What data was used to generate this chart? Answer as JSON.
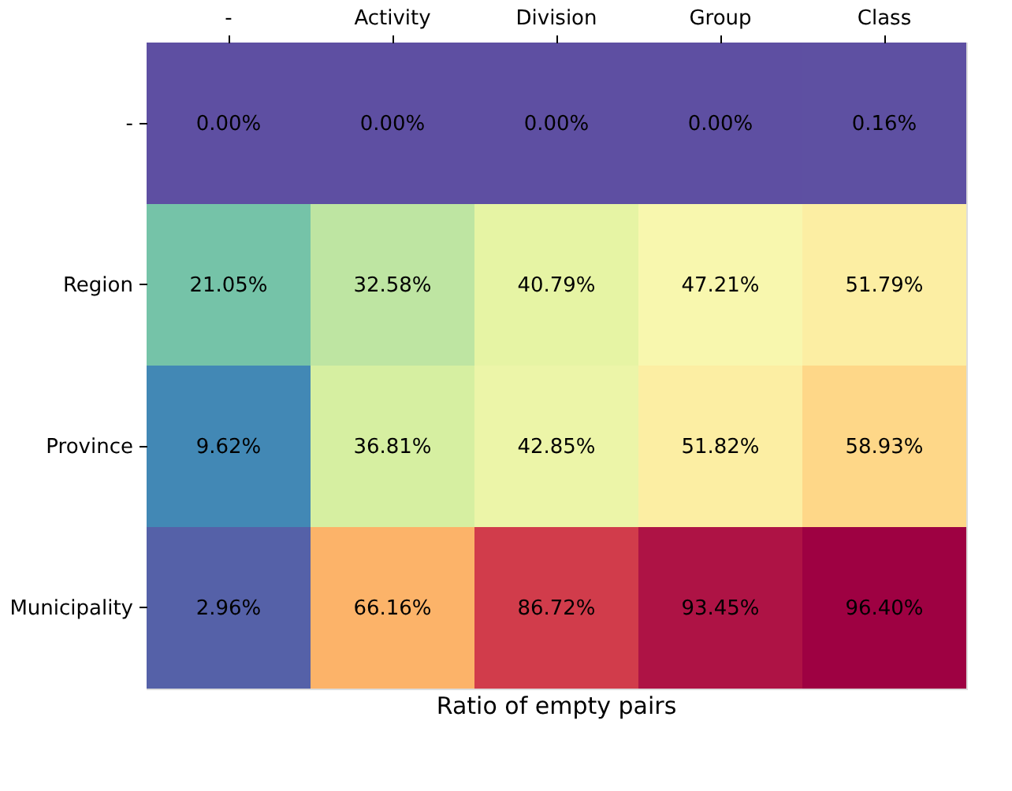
{
  "chart_data": {
    "type": "heatmap",
    "xlabel": "Ratio of empty pairs",
    "categories": [
      "-",
      "Activity",
      "Division",
      "Group",
      "Class"
    ],
    "y_categories": [
      "-",
      "Region",
      "Province",
      "Municipality"
    ],
    "cells": [
      [
        0.0,
        0.0,
        0.0,
        0.0,
        0.16
      ],
      [
        21.05,
        32.58,
        40.79,
        47.21,
        51.79
      ],
      [
        9.62,
        36.81,
        42.85,
        51.82,
        58.93
      ],
      [
        2.96,
        66.16,
        86.72,
        93.45,
        96.4
      ]
    ],
    "cell_labels": [
      [
        "0.00%",
        "0.00%",
        "0.00%",
        "0.00%",
        "0.16%"
      ],
      [
        "21.05%",
        "32.58%",
        "40.79%",
        "47.21%",
        "51.79%"
      ],
      [
        "9.62%",
        "36.81%",
        "42.85%",
        "51.82%",
        "58.93%"
      ],
      [
        "2.96%",
        "66.16%",
        "86.72%",
        "93.45%",
        "96.40%"
      ]
    ]
  }
}
